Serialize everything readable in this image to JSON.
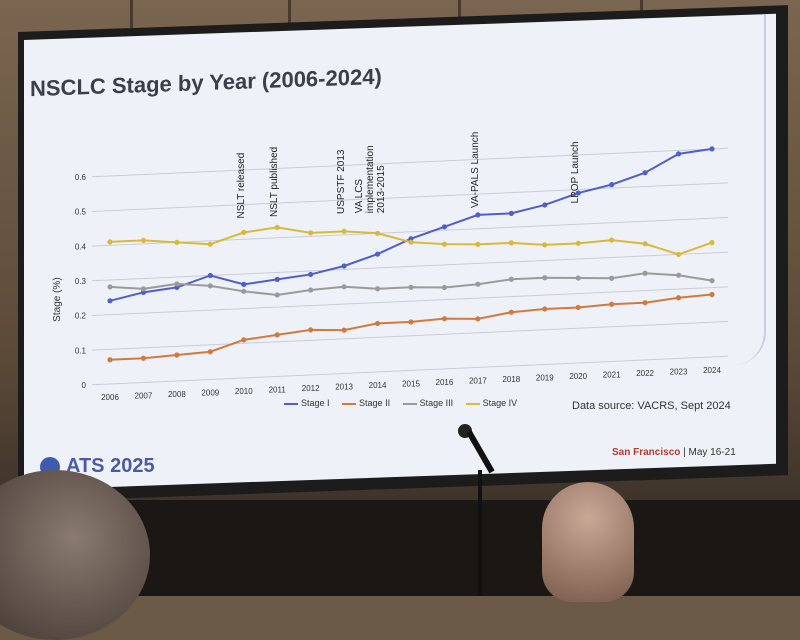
{
  "slide": {
    "title": "NSCLC Stage by Year (2006-2024)",
    "data_source": "Data source: VACRS, Sept 2024",
    "conference_logo": "ATS 2025",
    "location": "San Francisco",
    "dates": "| May 16-21"
  },
  "events": [
    {
      "label": "NSLT released",
      "year": "2010"
    },
    {
      "label": "NSLT published",
      "year": "2011"
    },
    {
      "label": "USPSTF 2013",
      "year": "2013"
    },
    {
      "label": "VA LCS implementation 2013-2015",
      "year": "2013"
    },
    {
      "label": "VA-PALS Launch",
      "year": "2017"
    },
    {
      "label": "LPOP Launch",
      "year": "2020"
    }
  ],
  "chart_data": {
    "type": "line",
    "title": "NSCLC Stage by Year (2006-2024)",
    "ylabel": "Stage (%)",
    "xlabel": "",
    "ylim": [
      0,
      0.6
    ],
    "yticks": [
      "0",
      "0.1",
      "0.2",
      "0.3",
      "0.4",
      "0.5",
      "0.6"
    ],
    "categories": [
      "2006",
      "2007",
      "2008",
      "2009",
      "2010",
      "2011",
      "2012",
      "2013",
      "2014",
      "2015",
      "2016",
      "2017",
      "2018",
      "2019",
      "2020",
      "2021",
      "2022",
      "2023",
      "2024"
    ],
    "legend_position": "bottom",
    "series": [
      {
        "name": "Stage I",
        "color": "#4f5fc9",
        "values": [
          0.24,
          0.26,
          0.27,
          0.3,
          0.27,
          0.28,
          0.29,
          0.31,
          0.34,
          0.38,
          0.41,
          0.44,
          0.44,
          0.46,
          0.49,
          0.51,
          0.54,
          0.59,
          0.6
        ]
      },
      {
        "name": "Stage II",
        "color": "#d07a3e",
        "values": [
          0.07,
          0.07,
          0.075,
          0.08,
          0.11,
          0.12,
          0.13,
          0.125,
          0.14,
          0.14,
          0.145,
          0.14,
          0.155,
          0.16,
          0.16,
          0.165,
          0.165,
          0.175,
          0.18
        ]
      },
      {
        "name": "Stage III",
        "color": "#9a9a9a",
        "values": [
          0.28,
          0.27,
          0.28,
          0.27,
          0.25,
          0.235,
          0.245,
          0.25,
          0.24,
          0.24,
          0.235,
          0.24,
          0.25,
          0.25,
          0.245,
          0.24,
          0.25,
          0.24,
          0.22
        ]
      },
      {
        "name": "Stage IV",
        "color": "#d9b93a",
        "values": [
          0.41,
          0.41,
          0.4,
          0.39,
          0.42,
          0.43,
          0.41,
          0.41,
          0.4,
          0.37,
          0.36,
          0.355,
          0.355,
          0.345,
          0.345,
          0.35,
          0.335,
          0.3,
          0.33
        ]
      }
    ]
  }
}
